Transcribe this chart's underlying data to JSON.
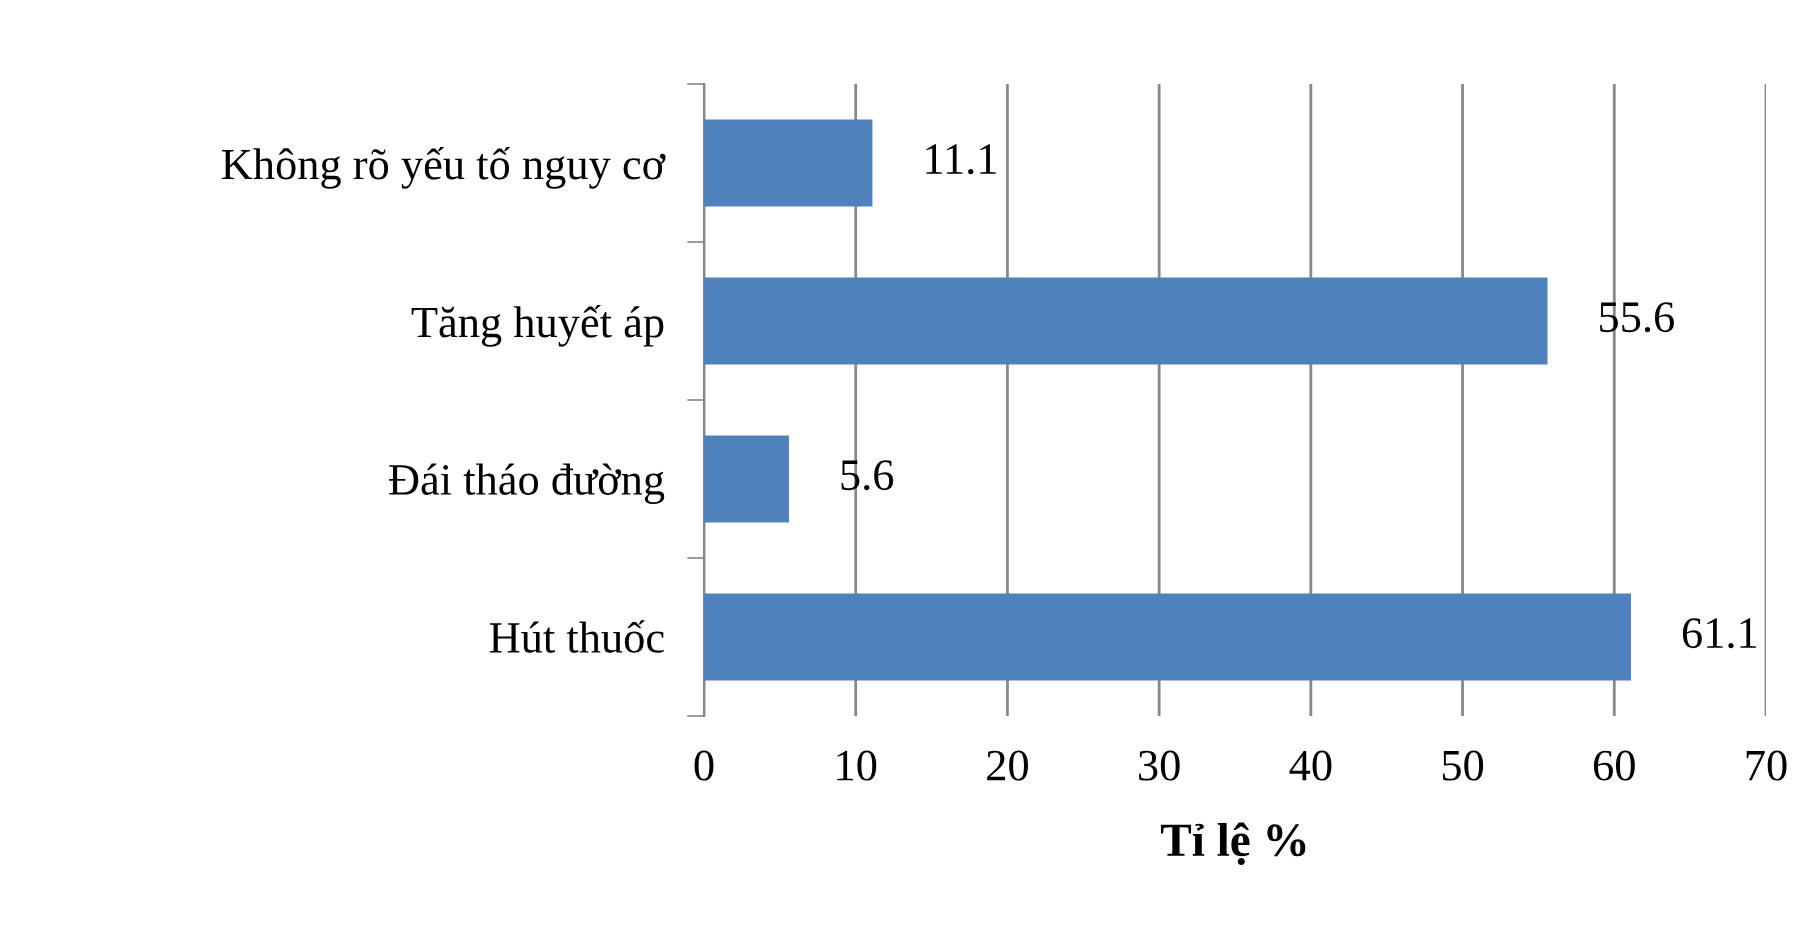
{
  "chart_data": {
    "type": "bar",
    "orientation": "horizontal",
    "xlabel": "Tỉ lệ %",
    "categories": [
      "Không rõ yếu tố nguy cơ",
      "Tăng huyết áp",
      "Đái tháo đường",
      "Hút thuốc"
    ],
    "values": [
      11.1,
      55.6,
      5.6,
      61.1
    ],
    "color": "#4f81bd",
    "xlim": [
      0,
      70
    ],
    "xticks": [
      0,
      10,
      20,
      30,
      40,
      50,
      60,
      70
    ],
    "grid": "x",
    "data_labels": true,
    "legend": false
  }
}
